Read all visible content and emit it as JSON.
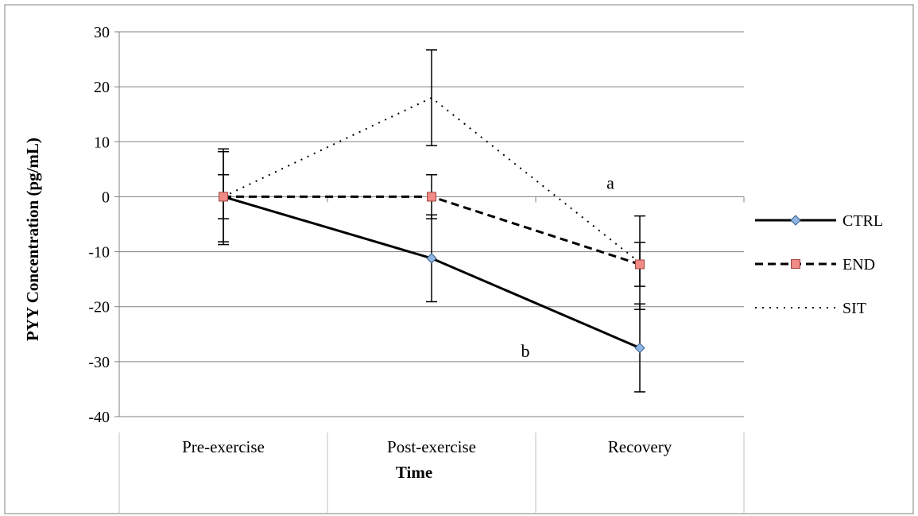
{
  "chart_data": {
    "type": "line",
    "title": "",
    "xlabel": "Time",
    "ylabel": "PYY Concentration (pg/mL)",
    "categories": [
      "Pre-exercise",
      "Post-exercise",
      "Recovery"
    ],
    "ylim": [
      -40,
      30
    ],
    "yticks": [
      30,
      20,
      10,
      0,
      -10,
      -20,
      -30,
      -40
    ],
    "grid": true,
    "legend_position": "right",
    "series": [
      {
        "name": "CTRL",
        "values": [
          0,
          -11.2,
          -27.5
        ],
        "errors": [
          8.2,
          7.9,
          8.0
        ],
        "line_style": "solid",
        "marker": "diamond",
        "marker_color": "#8db4e2",
        "line_color": "#000000"
      },
      {
        "name": "END",
        "values": [
          0,
          0,
          -12.3
        ],
        "errors": [
          4.0,
          4.0,
          4.0
        ],
        "line_style": "dashed",
        "marker": "square",
        "marker_color": "#f08a84",
        "line_color": "#000000"
      },
      {
        "name": "SIT",
        "values": [
          0,
          18.0,
          -12.0
        ],
        "errors": [
          8.7,
          8.7,
          8.5
        ],
        "line_style": "dotted",
        "marker": "none",
        "marker_color": "#ffffff",
        "line_color": "#000000"
      }
    ],
    "annotations": [
      {
        "text": "a",
        "x": "Recovery",
        "y": 2.6
      },
      {
        "text": "b",
        "x": "Post-exercise",
        "y": -28
      }
    ]
  }
}
